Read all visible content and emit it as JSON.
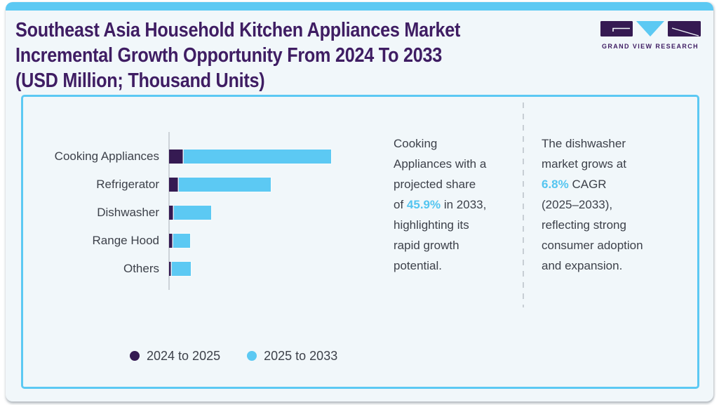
{
  "header": {
    "title_lines": [
      "Southeast Asia Household Kitchen Appliances Market",
      "Incremental Growth Opportunity From 2024 To 2033",
      "(USD Million; Thousand Units)"
    ]
  },
  "logo": {
    "wordmark": "GRAND VIEW RESEARCH"
  },
  "chart_data": {
    "type": "bar",
    "orientation": "horizontal",
    "stacked": true,
    "title": "Southeast Asia Household Kitchen Appliances Market Incremental Growth Opportunity From 2024 To 2033",
    "units_label": "USD Million; Thousand Units",
    "axis_values_labeled": false,
    "value_scale": "relative bar lengths (no numeric axis shown)",
    "categories": [
      "Cooking Appliances",
      "Refrigerator",
      "Dishwasher",
      "Range Hood",
      "Others"
    ],
    "series": [
      {
        "name": "2024 to 2025",
        "color": "#351a52",
        "values": [
          20,
          13,
          6,
          5,
          3
        ]
      },
      {
        "name": "2025 to 2033",
        "color": "#5cc9f3",
        "values": [
          211,
          132,
          54,
          25,
          28
        ]
      }
    ],
    "legend_position": "bottom"
  },
  "annotations": {
    "left": {
      "line1": "Cooking",
      "line2": "Appliances with a",
      "line3": "projected share",
      "line4_pre": "of ",
      "line4_highlight": "45.9%",
      "line4_post": " in 2033,",
      "line5": "highlighting its",
      "line6": "rapid growth",
      "line7": "potential."
    },
    "right": {
      "line1": "The dishwasher",
      "line2": "market grows at",
      "line3_highlight": "6.8%",
      "line3_post": " CAGR",
      "line4": "(2025–2033),",
      "line5": "reflecting strong",
      "line6": "consumer adoption",
      "line7": "and expansion."
    }
  },
  "colors": {
    "accent_blue": "#54c5f0",
    "bar_blue": "#5cc9f3",
    "dark_purple": "#351a52",
    "title_purple": "#3f1d63",
    "body_text": "#3d414a",
    "panel_border": "#5cc9f3",
    "card_bg": "#f1f7fa"
  }
}
